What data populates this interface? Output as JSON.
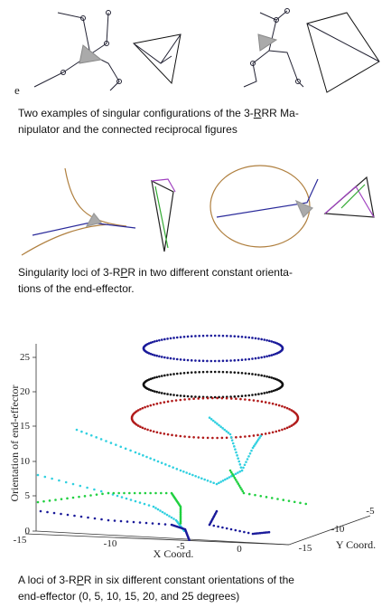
{
  "figure1": {
    "label": "e",
    "caption": [
      [
        "Two examples of singular configurations of the 3-",
        "R",
        "RR Ma-"
      ],
      [
        "nipulator and the connected reciprocal figures"
      ]
    ]
  },
  "figure2": {
    "caption": [
      [
        "Singularity loci of 3-R",
        "P",
        "R in two different constant orienta-"
      ],
      [
        "tions of the end-effector."
      ]
    ]
  },
  "figure3": {
    "z_axis_label": "Orientation of end-effector",
    "x_axis_label": "X Coord.",
    "y_axis_label": "Y Coord.",
    "z_ticks": [
      "0",
      "5",
      "10",
      "15",
      "20",
      "25"
    ],
    "x_ticks": [
      "-15",
      "-10",
      "-5",
      "0"
    ],
    "y_ticks": [
      "-15",
      "-10",
      "-5"
    ],
    "caption": [
      [
        "A loci of 3-R",
        "P",
        "R in six different constant orientations of the"
      ],
      [
        "end-effector (0, 5, 10, 15, 20, and 25 degrees)"
      ]
    ]
  }
}
